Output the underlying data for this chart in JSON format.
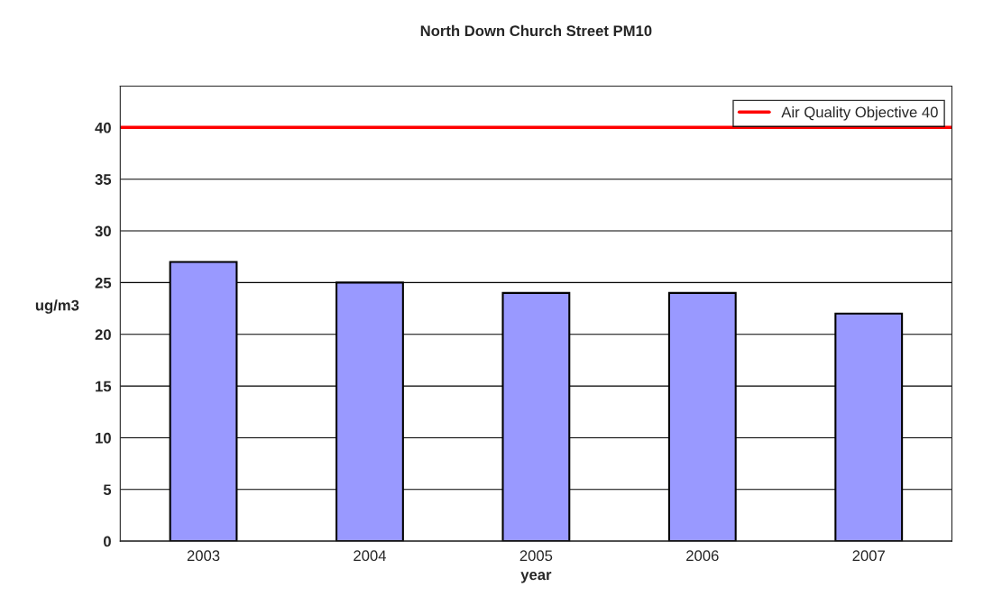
{
  "chart_data": {
    "type": "bar",
    "title": "North Down Church Street PM10",
    "xlabel": "year",
    "ylabel": "ug/m3",
    "categories": [
      "2003",
      "2004",
      "2005",
      "2006",
      "2007"
    ],
    "values": [
      27,
      25,
      24,
      24,
      22
    ],
    "color": "#9999ff",
    "ylim": [
      0,
      44
    ],
    "yticks": [
      0,
      5,
      10,
      15,
      20,
      25,
      30,
      35,
      40
    ],
    "grid": "y",
    "ref_lines": [
      {
        "axis": "y",
        "value": 40,
        "label": "Air Quality Objective 40",
        "color": "#ff0000",
        "line_style": "solid"
      }
    ],
    "legend": "top right"
  }
}
